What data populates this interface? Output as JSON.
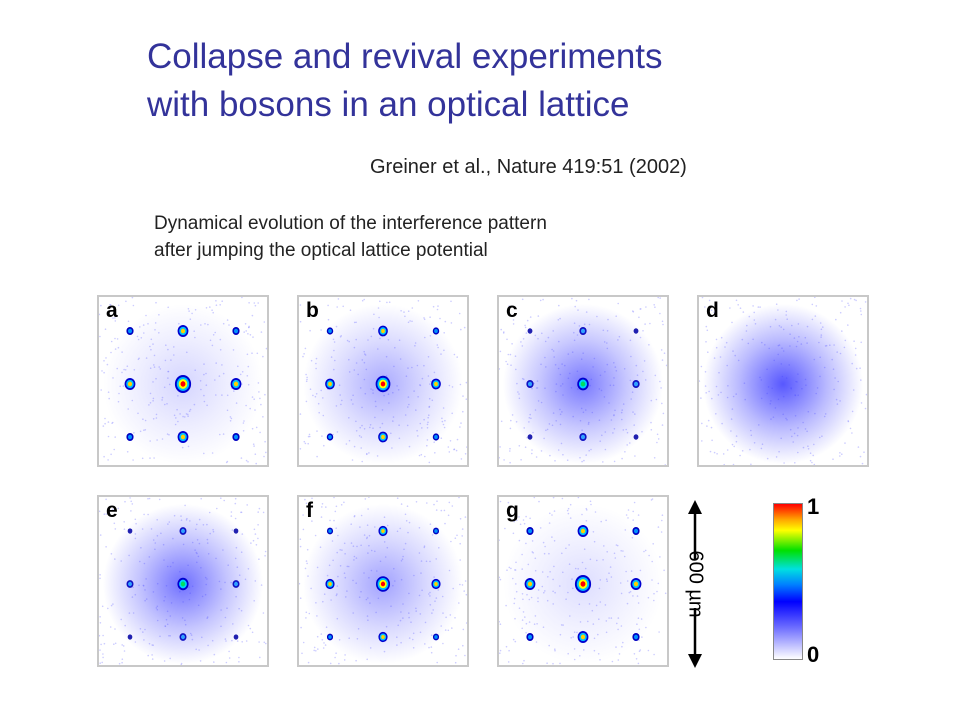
{
  "title": {
    "line1": "Collapse and revival experiments",
    "line2": "with bosons in an optical lattice"
  },
  "citation": "Greiner et al., Nature 419:51 (2002)",
  "description": {
    "line1": "Dynamical evolution of the interference pattern",
    "line2": "after jumping the optical lattice potential"
  },
  "panels": [
    {
      "label": "a",
      "peak_strength": 1.0,
      "haze": 0.25
    },
    {
      "label": "b",
      "peak_strength": 0.8,
      "haze": 0.5
    },
    {
      "label": "c",
      "peak_strength": 0.35,
      "haze": 0.8
    },
    {
      "label": "d",
      "peak_strength": 0.0,
      "haze": 1.0
    },
    {
      "label": "e",
      "peak_strength": 0.3,
      "haze": 0.85
    },
    {
      "label": "f",
      "peak_strength": 0.7,
      "haze": 0.55
    },
    {
      "label": "g",
      "peak_strength": 1.0,
      "haze": 0.2
    }
  ],
  "scale_bar": {
    "label": "600 µm"
  },
  "colorbar": {
    "max_label": "1",
    "min_label": "0"
  },
  "colors": {
    "title": "#33339a",
    "haze": "#3a3aff"
  }
}
